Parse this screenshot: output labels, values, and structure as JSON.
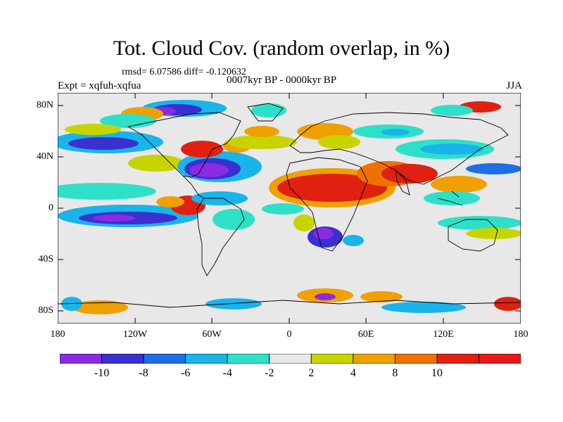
{
  "title": "Tot. Cloud Cov. (random overlap, in %)",
  "stats": "rmsd= 6.07586 diff= -0.120632",
  "experiment": "Expt = xqfuh-xqfua",
  "period": "0007kyr BP - 0000kyr BP",
  "season": "JJA",
  "y_ticks": [
    "80N",
    "40N",
    "0",
    "40S",
    "80S"
  ],
  "x_ticks": [
    "180",
    "120W",
    "60W",
    "0",
    "60E",
    "120E",
    "180"
  ],
  "colorbar": {
    "labels": [
      "-10",
      "-8",
      "-6",
      "-4",
      "-2",
      "2",
      "4",
      "8",
      "10"
    ],
    "colors": [
      "#8a2be2",
      "#3a30d0",
      "#1e6ee6",
      "#19b4ea",
      "#2ee0c8",
      "#e8e8e8",
      "#c8d400",
      "#f0a000",
      "#f07000",
      "#e02010",
      "#e61a1a"
    ]
  }
}
